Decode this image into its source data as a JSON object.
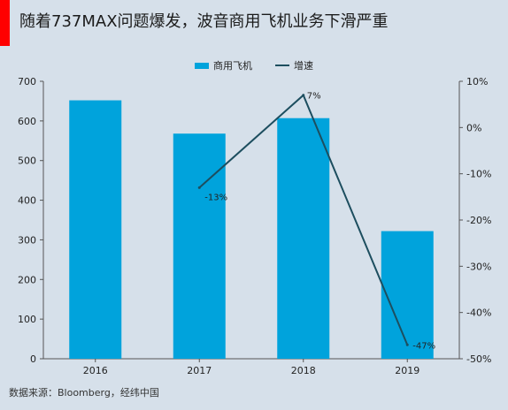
{
  "title": "随着737MAX问题爆发，波音商用飞机业务下滑严重",
  "source": "数据来源：Bloomberg，经纬中国",
  "colors": {
    "accent": "#ff0000",
    "bar": "#00a3dc",
    "line": "#1d4e5f",
    "axis": "#555555"
  },
  "chart_data": {
    "type": "bar",
    "categories": [
      "2016",
      "2017",
      "2018",
      "2019"
    ],
    "series": [
      {
        "name": "商用飞机",
        "type": "bar",
        "axis": "left",
        "values": [
          652,
          568,
          607,
          322
        ]
      },
      {
        "name": "增速",
        "type": "line",
        "axis": "right",
        "values": [
          null,
          -13,
          7,
          -47
        ],
        "labels": [
          "",
          "-13%",
          "7%",
          "-47%"
        ]
      }
    ],
    "ylim_left": [
      0,
      700
    ],
    "yticks_left": [
      "0",
      "100",
      "200",
      "300",
      "400",
      "500",
      "600",
      "700"
    ],
    "ylim_right": [
      -50,
      10
    ],
    "yticks_right": [
      "-50%",
      "-40%",
      "-30%",
      "-20%",
      "-10%",
      "0%",
      "10%"
    ],
    "grid": false,
    "legend": "top-center"
  }
}
